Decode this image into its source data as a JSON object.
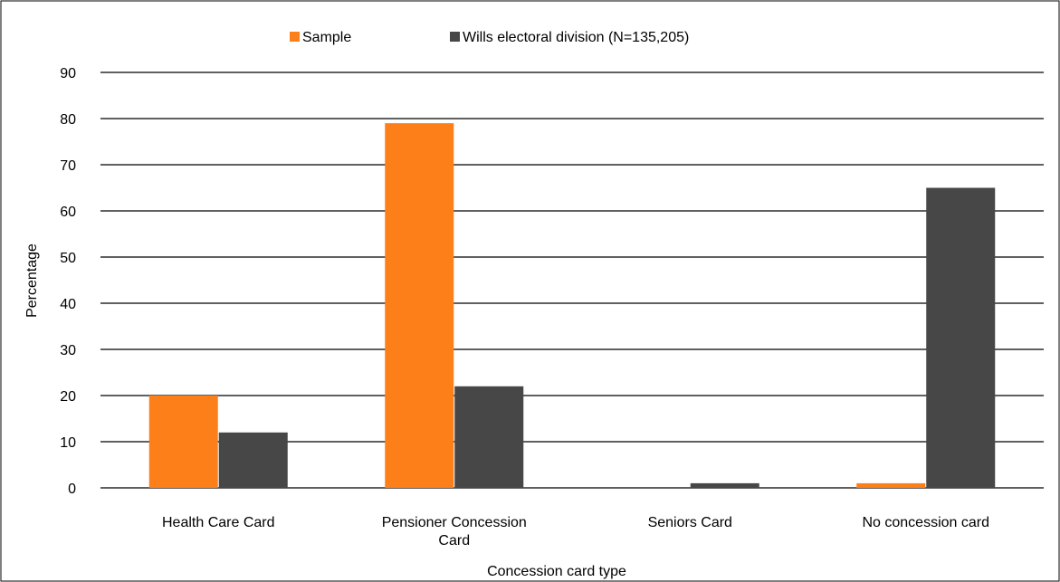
{
  "chart_data": {
    "type": "bar",
    "xlabel": "Concession card type",
    "ylabel": "Percentage",
    "ylim": [
      0,
      90
    ],
    "yticks": [
      0,
      10,
      20,
      30,
      40,
      50,
      60,
      70,
      80,
      90
    ],
    "categories": [
      [
        "Health Care Card"
      ],
      [
        "Pensioner Concession",
        "Card"
      ],
      [
        "Seniors Card"
      ],
      [
        "No concession card"
      ]
    ],
    "series": [
      {
        "name": "Sample",
        "color": "#fd7f1a",
        "values": [
          20,
          79,
          0,
          1
        ]
      },
      {
        "name": "Wills electoral division (N=135,205)",
        "color": "#474747",
        "values": [
          12,
          22,
          1,
          65
        ]
      }
    ],
    "grid": true,
    "legend_position": "top-center"
  }
}
